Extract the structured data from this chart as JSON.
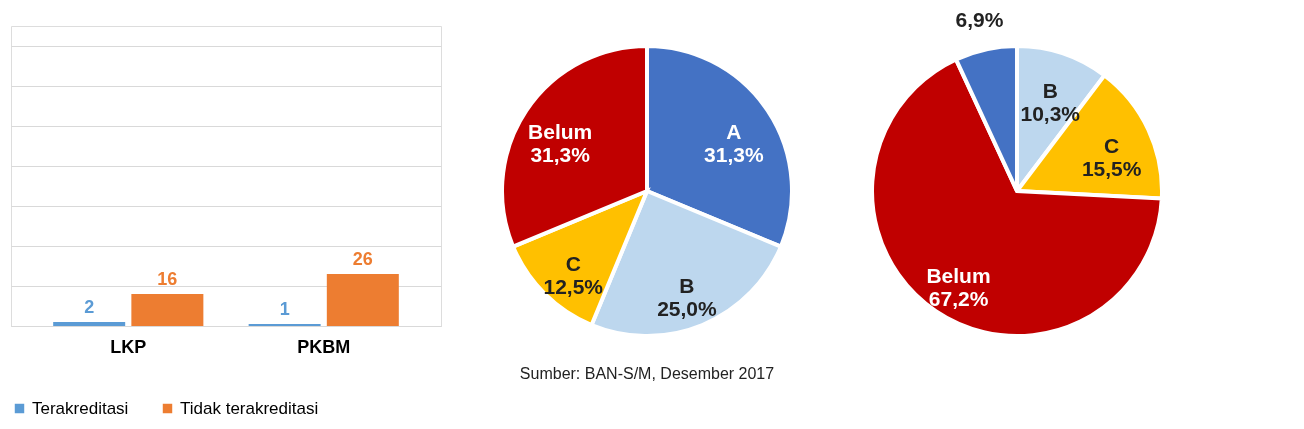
{
  "chart_data": [
    {
      "type": "bar",
      "categories": [
        "LKP",
        "PKBM"
      ],
      "series": [
        {
          "name": "Terakreditasi",
          "color": "#5b9bd5",
          "values": [
            2,
            1
          ]
        },
        {
          "name": "Tidak terakreditasi",
          "color": "#ed7d31",
          "values": [
            16,
            26
          ]
        }
      ],
      "ylim": [
        0,
        150
      ],
      "yticks": [
        {
          "value": 0,
          "label": null
        },
        {
          "value": 20,
          "label": null
        },
        {
          "value": 40,
          "label": null
        },
        {
          "value": 60,
          "label": null
        },
        {
          "value": 80,
          "label": null
        },
        {
          "value": 100,
          "label": null
        },
        {
          "value": 120,
          "label": null
        },
        {
          "value": 140,
          "label": null
        }
      ],
      "grid": "y",
      "tick_labels": "x",
      "legend": "bottom",
      "data_labels": true
    },
    {
      "type": "pie",
      "categories": [
        "A",
        "B",
        "C",
        "Belum"
      ],
      "values": [
        31.3,
        25.0,
        12.5,
        31.3
      ],
      "colors": [
        "#4472c4",
        "#bdd7ee",
        "#ffc000",
        "#c00000"
      ],
      "value_labels": [
        "31,3%",
        "25,0%",
        "12,5%",
        "31,3%"
      ],
      "annotations": [
        "Sumber: BAN-S/M, Desember 2017"
      ]
    },
    {
      "type": "pie",
      "categories": [
        "B",
        "C",
        "Belum",
        null
      ],
      "values": [
        10.3,
        15.5,
        67.2,
        6.9
      ],
      "colors": [
        "#bdd7ee",
        "#ffc000",
        "#c00000",
        "#4472c4"
      ],
      "value_labels": [
        "10,3%",
        "15,5%",
        "67,2%",
        "6,9%"
      ]
    }
  ]
}
